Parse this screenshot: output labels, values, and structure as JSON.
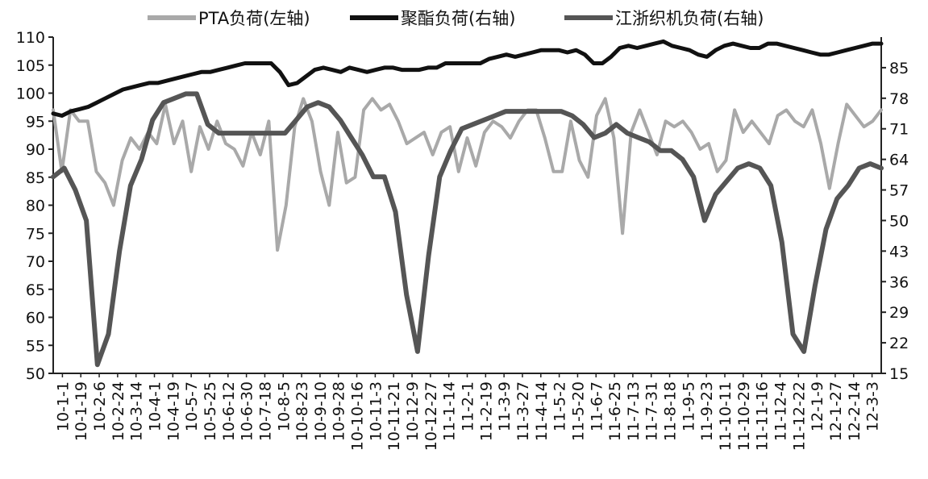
{
  "chart_data": {
    "type": "line",
    "legend": {
      "placement": "top",
      "items": [
        {
          "label": "PTA负荷(左轴)",
          "color": "#a9a9a9"
        },
        {
          "label": "聚酯负荷(右轴)",
          "color": "#111111"
        },
        {
          "label": "江浙织机负荷(右轴)",
          "color": "#555555"
        }
      ]
    },
    "left_axis": {
      "min": 50,
      "max": 110,
      "ticks": [
        "110",
        "105",
        "100",
        "95",
        "90",
        "85",
        "80",
        "75",
        "70",
        "65",
        "60",
        "55",
        "50"
      ]
    },
    "right_axis": {
      "min": 15,
      "max": 92,
      "ticks": [
        "85",
        "78",
        "71",
        "64",
        "57",
        "50",
        "43",
        "36",
        "29",
        "22",
        "15"
      ]
    },
    "x_labels": [
      "10-1-1",
      "10-1-19",
      "10-2-6",
      "10-2-24",
      "10-3-14",
      "10-4-1",
      "10-4-19",
      "10-5-7",
      "10-5-25",
      "10-6-12",
      "10-6-30",
      "10-7-18",
      "10-8-5",
      "10-8-23",
      "10-9-10",
      "10-9-28",
      "10-10-16",
      "10-11-3",
      "10-11-21",
      "10-12-9",
      "10-12-27",
      "11-1-14",
      "11-2-1",
      "11-2-19",
      "11-3-9",
      "11-3-27",
      "11-4-14",
      "11-5-2",
      "11-5-20",
      "11-6-7",
      "11-6-25",
      "11-7-13",
      "11-7-31",
      "11-8-18",
      "11-9-5",
      "11-9-23",
      "11-10-11",
      "11-10-29",
      "11-11-16",
      "11-12-4",
      "11-12-22",
      "12-1-9",
      "12-1-27",
      "12-2-14",
      "12-3-3"
    ],
    "series": [
      {
        "name": "PTA负荷(左轴)",
        "axis": "left",
        "color": "#a9a9a9",
        "values": [
          97,
          86,
          97,
          95,
          95,
          86,
          84,
          80,
          88,
          92,
          90,
          93,
          91,
          98,
          91,
          95,
          86,
          94,
          90,
          95,
          91,
          90,
          87,
          93,
          89,
          95,
          72,
          80,
          94,
          99,
          95,
          86,
          80,
          93,
          84,
          85,
          97,
          99,
          97,
          98,
          95,
          91,
          92,
          93,
          89,
          93,
          94,
          86,
          92,
          87,
          93,
          95,
          94,
          92,
          95,
          97,
          97,
          92,
          86,
          86,
          95,
          88,
          85,
          96,
          99,
          92,
          75,
          93,
          97,
          93,
          89,
          95,
          94,
          95,
          93,
          90,
          91,
          86,
          88,
          97,
          93,
          95,
          93,
          91,
          96,
          97,
          95,
          94,
          97,
          91,
          83,
          91,
          98,
          96,
          94,
          95,
          97
        ]
      },
      {
        "name": "聚酯负荷(右轴)",
        "axis": "right",
        "color": "#111111",
        "values": [
          74.5,
          74,
          75,
          75.5,
          76,
          77,
          78,
          79,
          80,
          80.5,
          81,
          81.5,
          81.5,
          82,
          82.5,
          83,
          83.5,
          84,
          84,
          84.5,
          85,
          85.5,
          86,
          86,
          86,
          86,
          84,
          81,
          81.5,
          83,
          84.5,
          85,
          84.5,
          84,
          85,
          84.5,
          84,
          84.5,
          85,
          85,
          84.5,
          84.5,
          84.5,
          85,
          85,
          86,
          86,
          86,
          86,
          86,
          87,
          87.5,
          88,
          87.5,
          88,
          88.5,
          89,
          89,
          89,
          88.5,
          89,
          88,
          86,
          86,
          87.5,
          89.5,
          90,
          89.5,
          90,
          90.5,
          91,
          90,
          89.5,
          89,
          88,
          87.5,
          89,
          90,
          90.5,
          90,
          89.5,
          89.5,
          90.5,
          90.5,
          90,
          89.5,
          89,
          88.5,
          88,
          88,
          88.5,
          89,
          89.5,
          90,
          90.5,
          90.5
        ]
      },
      {
        "name": "江浙织机负荷(右轴)",
        "axis": "right",
        "color": "#555555",
        "values": [
          60,
          62,
          57,
          50,
          17,
          24,
          43,
          58,
          64,
          73,
          77,
          78,
          79,
          79,
          72,
          70,
          70,
          70,
          70,
          70,
          70,
          70,
          73,
          76,
          77,
          76,
          73,
          69,
          65,
          60,
          60,
          52,
          33,
          20,
          42,
          60,
          66,
          71,
          72,
          73,
          74,
          75,
          75,
          75,
          75,
          75,
          75,
          74,
          72,
          69,
          70,
          72,
          70,
          69,
          68,
          66,
          66,
          64,
          60,
          50,
          56,
          59,
          62,
          63,
          62,
          58,
          45,
          24,
          20,
          35,
          48,
          55,
          58,
          62,
          63,
          62
        ]
      }
    ]
  }
}
